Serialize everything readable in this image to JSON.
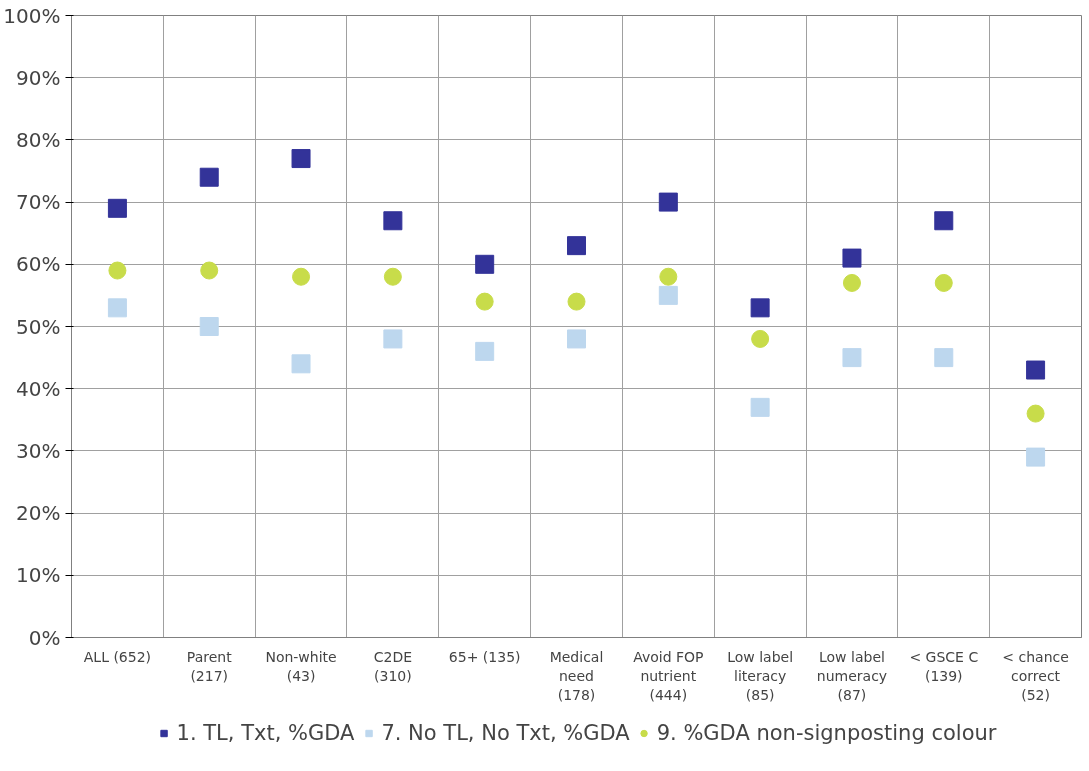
{
  "chart_data": {
    "type": "scatter",
    "categories": [
      "ALL (652)",
      "Parent\n(217)",
      "Non-white\n(43)",
      "C2DE\n(310)",
      "65+ (135)",
      "Medical\nneed\n(178)",
      "Avoid FOP\nnutrient\n(444)",
      "Low label\nliteracy\n(85)",
      "Low label\nnumeracy\n(87)",
      "< GSCE C\n(139)",
      "< chance\ncorrect\n(52)"
    ],
    "series": [
      {
        "name": "1. TL, Txt, %GDA",
        "color": "#333399",
        "marker": "square",
        "values": [
          69,
          74,
          77,
          67,
          60,
          63,
          70,
          53,
          61,
          67,
          43
        ]
      },
      {
        "name": "7. No TL, No Txt, %GDA",
        "color": "#bdd7ee",
        "marker": "square",
        "values": [
          53,
          50,
          44,
          48,
          46,
          48,
          55,
          37,
          45,
          45,
          29
        ]
      },
      {
        "name": "9. %GDA non-signposting colour",
        "color": "#c8dc4a",
        "marker": "circle",
        "values": [
          59,
          59,
          58,
          58,
          54,
          54,
          58,
          48,
          57,
          57,
          36
        ]
      }
    ],
    "ylim": [
      0,
      100
    ],
    "yticks": [
      {
        "value": 0,
        "label": "0%"
      },
      {
        "value": 10,
        "label": "10%"
      },
      {
        "value": 20,
        "label": "20%"
      },
      {
        "value": 30,
        "label": "30%"
      },
      {
        "value": 40,
        "label": "40%"
      },
      {
        "value": 50,
        "label": "50%"
      },
      {
        "value": 60,
        "label": "60%"
      },
      {
        "value": 70,
        "label": "70%"
      },
      {
        "value": 80,
        "label": "80%"
      },
      {
        "value": 90,
        "label": "90%"
      },
      {
        "value": 100,
        "label": "100%"
      }
    ],
    "grid": true,
    "legend": "bottom"
  }
}
